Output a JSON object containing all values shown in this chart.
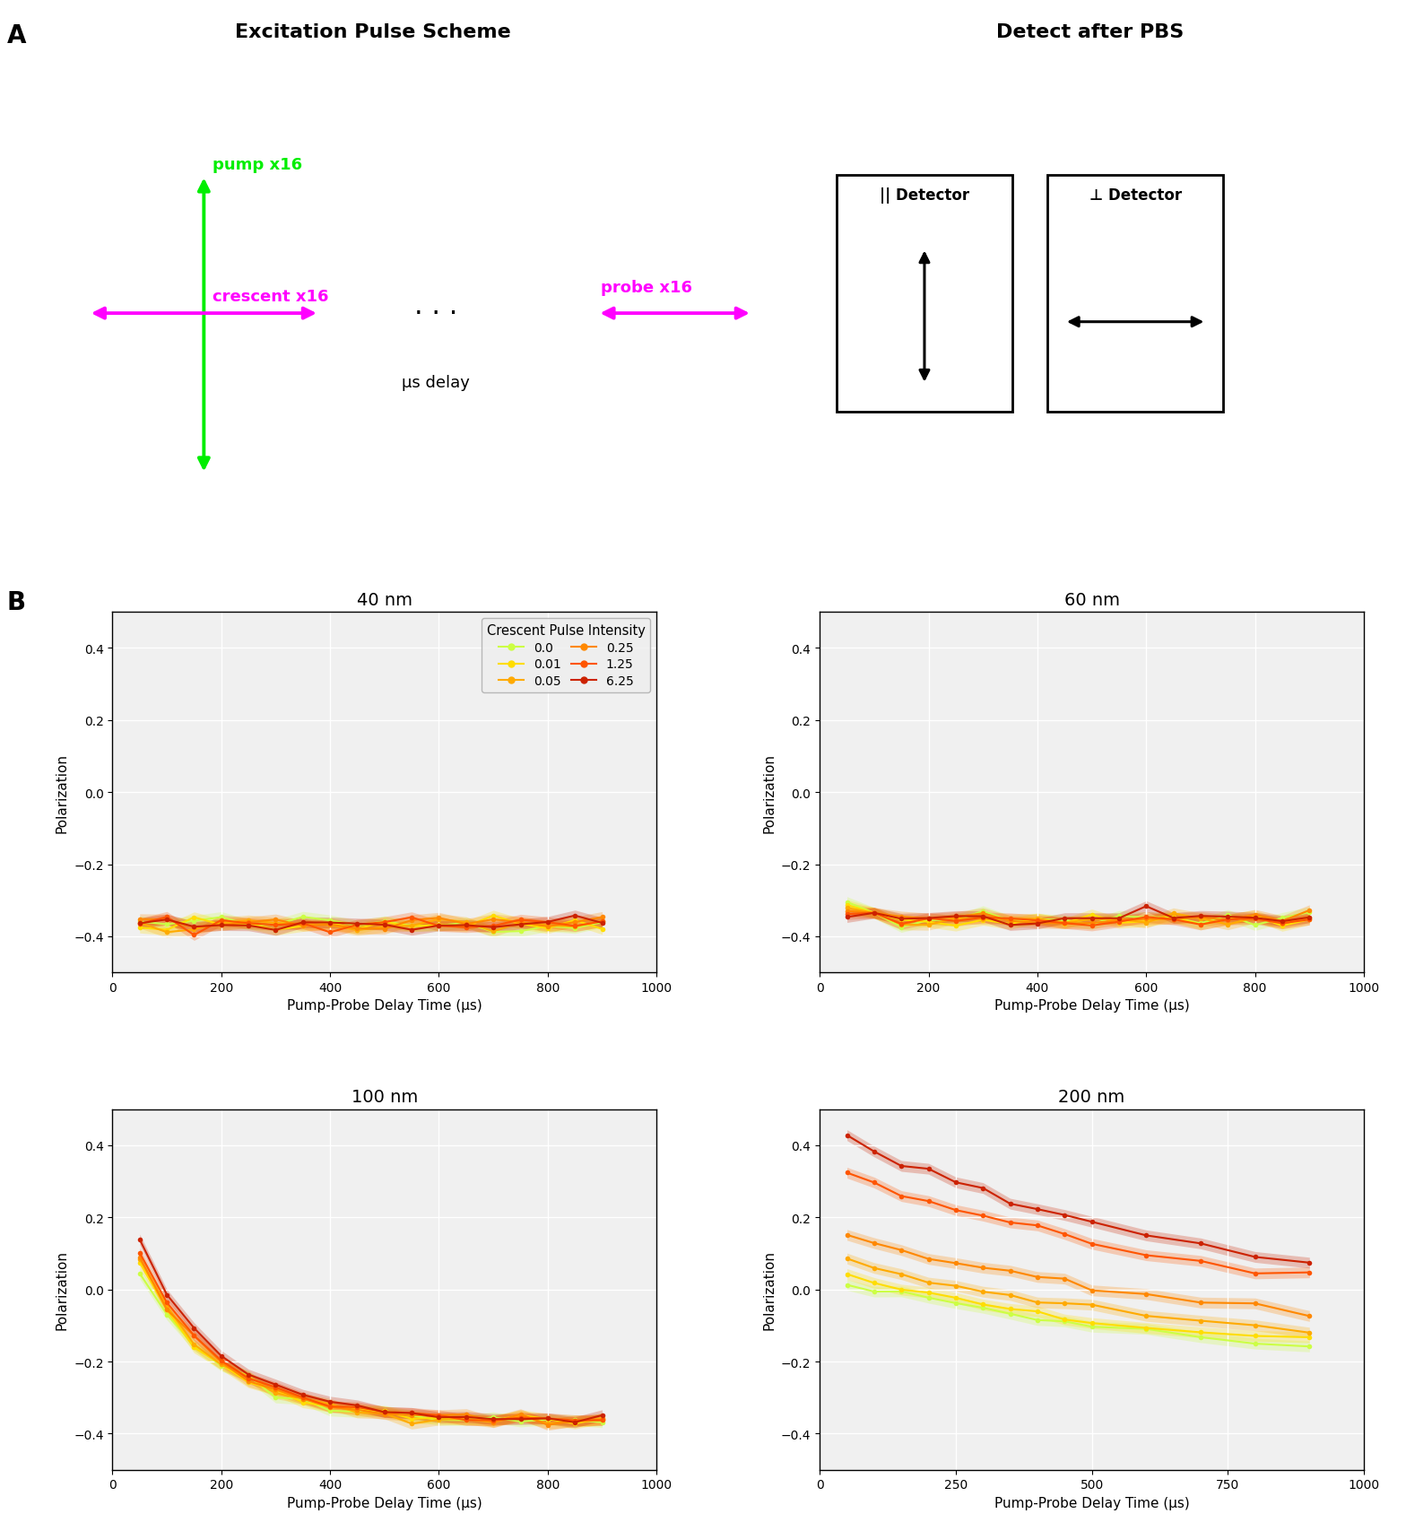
{
  "panel_A_title": "Excitation Pulse Scheme",
  "panel_B_title": "Detect after PBS",
  "pump_label": "pump x16",
  "crescent_label": "crescent x16",
  "probe_label": "probe x16",
  "delay_label": "μs delay",
  "parallel_label": "|| Detector",
  "perp_label": "⊥ Detector",
  "subplot_titles": [
    "40 nm",
    "60 nm",
    "100 nm",
    "200 nm"
  ],
  "legend_title": "Crescent Pulse Intensity",
  "legend_values": [
    "0.0",
    "0.01",
    "0.05",
    "0.25",
    "1.25",
    "6.25"
  ],
  "colors": [
    "#ccff44",
    "#ffdd00",
    "#ffaa00",
    "#ff8800",
    "#ff5500",
    "#cc2200"
  ],
  "xlabel": "Pump-Probe Delay Time (μs)",
  "ylabel": "Polarization",
  "pump_color": "#00ee00",
  "crescent_color": "#ff00ff",
  "probe_color": "#ff00ff"
}
